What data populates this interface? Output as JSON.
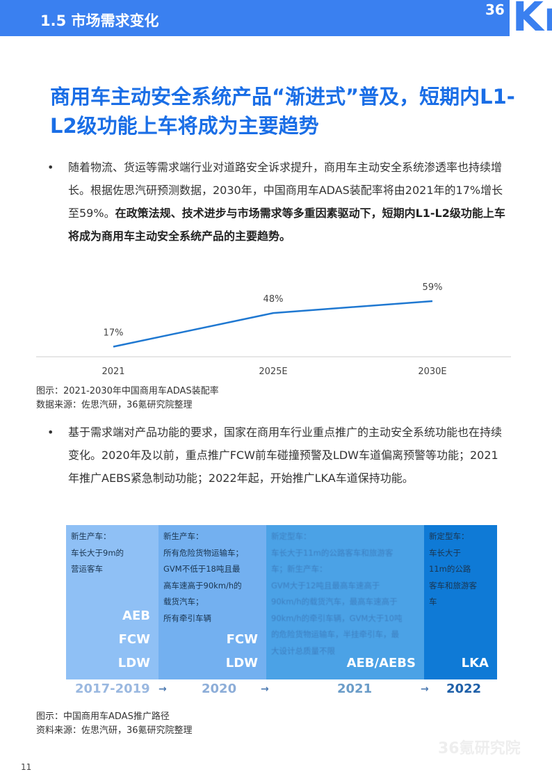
{
  "header": {
    "section": "1.5 市场需求变化",
    "logo": "36Kr"
  },
  "title": "商用车主动安全系统产品“渐进式”普及，短期内L1-L2级功能上车将成为主要趋势",
  "bullet_symbol": "•",
  "bullet1": {
    "text": "随着物流、货运等需求端行业对道路安全诉求提升，商用车主动安全系统渗透率也持续增长。根据佐思汽研预测数据，2030年，中国商用车ADAS装配率将由2021年的17%增长至59%。",
    "bold": "在政策法规、技术进步与市场需求等多重因素驱动下，短期内L1-L2级功能上车将成为商用车主动安全系统产品的主要趋势。"
  },
  "chart_data": {
    "type": "line",
    "categories": [
      "2021",
      "2025E",
      "2030E"
    ],
    "values": [
      17,
      48,
      59
    ],
    "data_labels": [
      "17%",
      "48%",
      "59%"
    ],
    "color": "#1f78d1",
    "grid": false,
    "ylim": [
      0,
      100
    ]
  },
  "caption1": {
    "figure": "图示：2021-2030年中国商用车ADAS装配率",
    "source": "数据来源：佐思汽研，36氪研究院整理"
  },
  "bullet2": {
    "text": "基于需求端对产品功能的要求，国家在商用车行业重点推广的主动安全系统功能也在持续变化。2020年及以前，重点推广FCW前车碰撞预警及LDW车道偏离预警等功能；2021年推广AEBS紧急制动功能；2022年起，开始推广LKA车道保持功能。"
  },
  "roadmap": [
    {
      "year": "2017-2019",
      "lines": [
        "新生产车：",
        "车长大于9m的",
        "营运客车"
      ],
      "tags": [
        "AEB",
        "FCW",
        "LDW"
      ],
      "bg": "#8fc0f5",
      "year_color": "#9ab8e0"
    },
    {
      "year": "2020",
      "lines": [
        "新生产车：",
        "所有危险货物运输车；",
        "GVM不低于18吨且最",
        "高车速高于90km/h的",
        "载货汽车；",
        "所有牵引车辆"
      ],
      "tags": [
        "FCW",
        "LDW"
      ],
      "bg": "#73b0f0",
      "year_color": "#8cadd8"
    },
    {
      "year": "2021",
      "lines": [
        "新定型车：",
        "车长大于11m的公路客车和旅游客",
        "车；新生产车：",
        "GVM大于12吨且最高车速高于",
        "90km/h的载货汽车，最高车速高于",
        "90km/h的牵引车辆，GVM大于10吨",
        "的危险货物运输车，半挂牵引车，最",
        "大设计总质量不限"
      ],
      "tags": [
        "AEB/AEBS"
      ],
      "bg": "#4ba2e6",
      "year_color": "#6a9cc8"
    },
    {
      "year": "2022",
      "lines": [
        "新定型车：",
        "车长大于",
        "11m的公路",
        "客车和旅游客",
        "车"
      ],
      "tags": [
        "LKA"
      ],
      "bg": "#0f7ad6",
      "year_color": "#1d5fa8"
    }
  ],
  "arrow": "→",
  "caption2": {
    "figure": "图示：中国商用车ADAS推广路径",
    "source": "资料来源：佐思汽研，36氪研究院整理"
  },
  "watermark": "36氪研究院",
  "page_number": "11"
}
